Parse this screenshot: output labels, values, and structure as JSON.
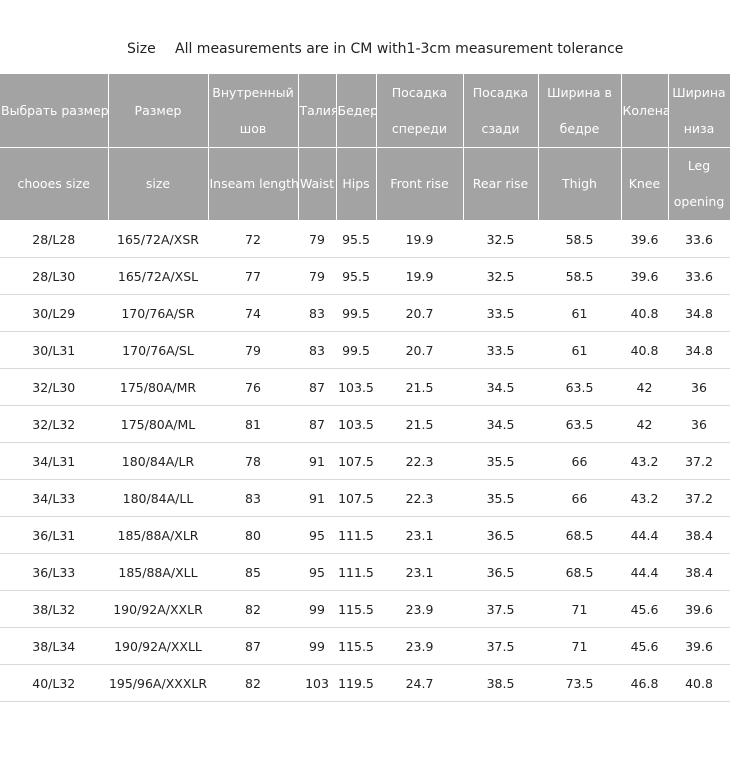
{
  "title": {
    "size_label": "Size",
    "note": "All measurements are in CM with1-3cm measurement tolerance"
  },
  "table": {
    "header_ru": [
      "Выбрать размер",
      "Размер",
      "Внутренный шов",
      "Талия",
      "Бедер",
      "Посадка спереди",
      "Посадка сзади",
      "Ширина в бедре",
      "Колена",
      "Ширина низа"
    ],
    "header_en": [
      "chooes size",
      "size",
      "Inseam length",
      "Waist",
      "Hips",
      "Front rise",
      "Rear rise",
      "Thigh",
      "Knee",
      "Leg opening"
    ],
    "rows": [
      [
        "28/L28",
        "165/72A/XSR",
        "72",
        "79",
        "95.5",
        "19.9",
        "32.5",
        "58.5",
        "39.6",
        "33.6"
      ],
      [
        "28/L30",
        "165/72A/XSL",
        "77",
        "79",
        "95.5",
        "19.9",
        "32.5",
        "58.5",
        "39.6",
        "33.6"
      ],
      [
        "30/L29",
        "170/76A/SR",
        "74",
        "83",
        "99.5",
        "20.7",
        "33.5",
        "61",
        "40.8",
        "34.8"
      ],
      [
        "30/L31",
        "170/76A/SL",
        "79",
        "83",
        "99.5",
        "20.7",
        "33.5",
        "61",
        "40.8",
        "34.8"
      ],
      [
        "32/L30",
        "175/80A/MR",
        "76",
        "87",
        "103.5",
        "21.5",
        "34.5",
        "63.5",
        "42",
        "36"
      ],
      [
        "32/L32",
        "175/80A/ML",
        "81",
        "87",
        "103.5",
        "21.5",
        "34.5",
        "63.5",
        "42",
        "36"
      ],
      [
        "34/L31",
        "180/84A/LR",
        "78",
        "91",
        "107.5",
        "22.3",
        "35.5",
        "66",
        "43.2",
        "37.2"
      ],
      [
        "34/L33",
        "180/84A/LL",
        "83",
        "91",
        "107.5",
        "22.3",
        "35.5",
        "66",
        "43.2",
        "37.2"
      ],
      [
        "36/L31",
        "185/88A/XLR",
        "80",
        "95",
        "111.5",
        "23.1",
        "36.5",
        "68.5",
        "44.4",
        "38.4"
      ],
      [
        "36/L33",
        "185/88A/XLL",
        "85",
        "95",
        "111.5",
        "23.1",
        "36.5",
        "68.5",
        "44.4",
        "38.4"
      ],
      [
        "38/L32",
        "190/92A/XXLR",
        "82",
        "99",
        "115.5",
        "23.9",
        "37.5",
        "71",
        "45.6",
        "39.6"
      ],
      [
        "38/L34",
        "190/92A/XXLL",
        "87",
        "99",
        "115.5",
        "23.9",
        "37.5",
        "71",
        "45.6",
        "39.6"
      ],
      [
        "40/L32",
        "195/96A/XXXLR",
        "82",
        "103",
        "119.5",
        "24.7",
        "38.5",
        "73.5",
        "46.8",
        "40.8"
      ]
    ]
  },
  "colors": {
    "header_bg": "#a3a3a3",
    "header_text": "#ffffff",
    "row_divider": "#d9d9d9"
  }
}
